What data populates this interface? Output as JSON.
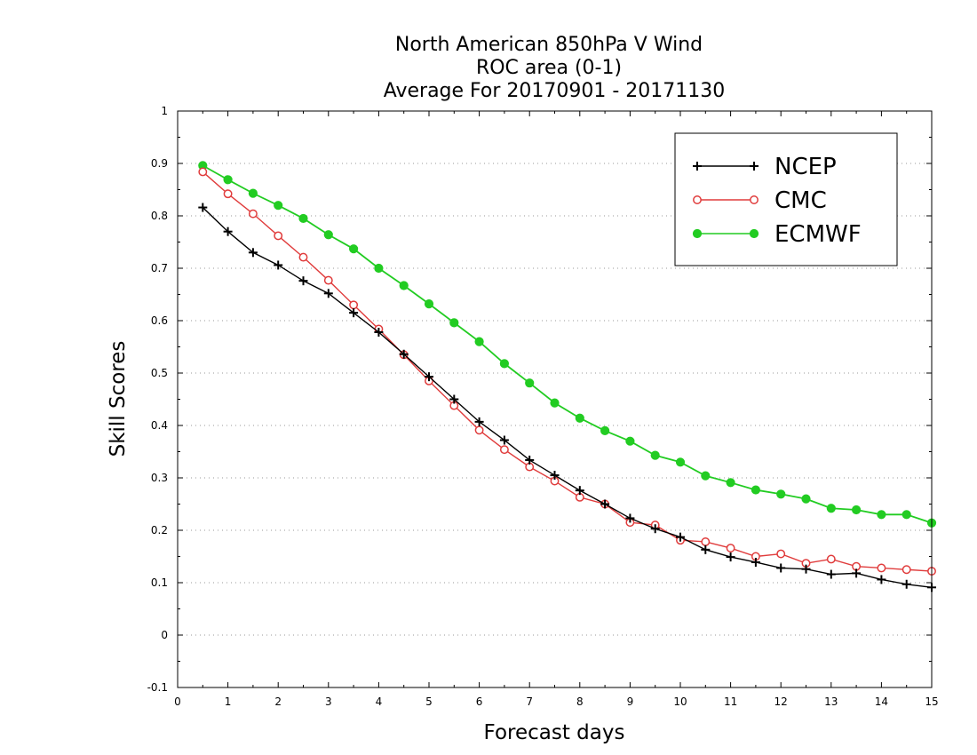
{
  "chart_data": {
    "type": "line",
    "title": [
      "North American 850hPa V Wind",
      "ROC area (0-1)",
      "Average For 20170901 - 20171130"
    ],
    "xlabel": "Forecast days",
    "ylabel": "Skill Scores",
    "xlim": [
      0,
      15
    ],
    "ylim": [
      -0.1,
      1
    ],
    "xticks": [
      "0",
      "1",
      "2",
      "3",
      "4",
      "5",
      "6",
      "7",
      "8",
      "9",
      "10",
      "11",
      "12",
      "13",
      "14",
      "15"
    ],
    "yticks": [
      "-0.1",
      "0",
      "0.1",
      "0.2",
      "0.3",
      "0.4",
      "0.5",
      "0.6",
      "0.7",
      "0.8",
      "0.9",
      "1"
    ],
    "grid": "horizontal dotted",
    "legend_position": "top-right",
    "x": [
      0.5,
      1,
      1.5,
      2,
      2.5,
      3,
      3.5,
      4,
      4.5,
      5,
      5.5,
      6,
      6.5,
      7,
      7.5,
      8,
      8.5,
      9,
      9.5,
      10,
      10.5,
      11,
      11.5,
      12,
      12.5,
      13,
      13.5,
      14,
      14.5,
      15
    ],
    "series": [
      {
        "name": "NCEP",
        "color": "#000000",
        "marker": "plus",
        "values": [
          0.816,
          0.77,
          0.73,
          0.706,
          0.676,
          0.652,
          0.615,
          0.578,
          0.536,
          0.493,
          0.45,
          0.407,
          0.372,
          0.334,
          0.305,
          0.276,
          0.25,
          0.223,
          0.203,
          0.187,
          0.163,
          0.149,
          0.139,
          0.128,
          0.126,
          0.116,
          0.118,
          0.106,
          0.097,
          0.091
        ]
      },
      {
        "name": "CMC",
        "color": "#e03c3c",
        "marker": "open-circle",
        "values": [
          0.884,
          0.842,
          0.804,
          0.762,
          0.721,
          0.677,
          0.63,
          0.584,
          0.535,
          0.485,
          0.438,
          0.391,
          0.354,
          0.321,
          0.294,
          0.263,
          0.25,
          0.215,
          0.21,
          0.181,
          0.178,
          0.166,
          0.15,
          0.155,
          0.137,
          0.145,
          0.131,
          0.128,
          0.125,
          0.122
        ]
      },
      {
        "name": "ECMWF",
        "color": "#22cc22",
        "marker": "filled-circle",
        "values": [
          0.896,
          0.869,
          0.843,
          0.82,
          0.795,
          0.764,
          0.737,
          0.7,
          0.667,
          0.632,
          0.596,
          0.56,
          0.518,
          0.481,
          0.443,
          0.414,
          0.39,
          0.37,
          0.343,
          0.33,
          0.304,
          0.291,
          0.277,
          0.269,
          0.26,
          0.242,
          0.239,
          0.23,
          0.23,
          0.214
        ]
      }
    ]
  }
}
